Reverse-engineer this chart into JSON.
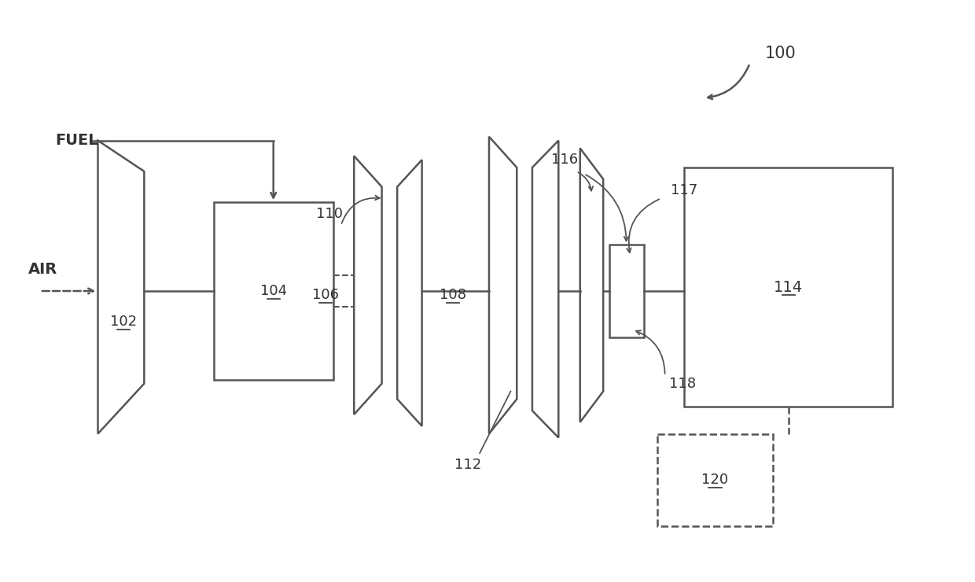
{
  "line_color": "#555555",
  "label_color": "#333333",
  "font_size": 13,
  "bg_color": "#ffffff"
}
